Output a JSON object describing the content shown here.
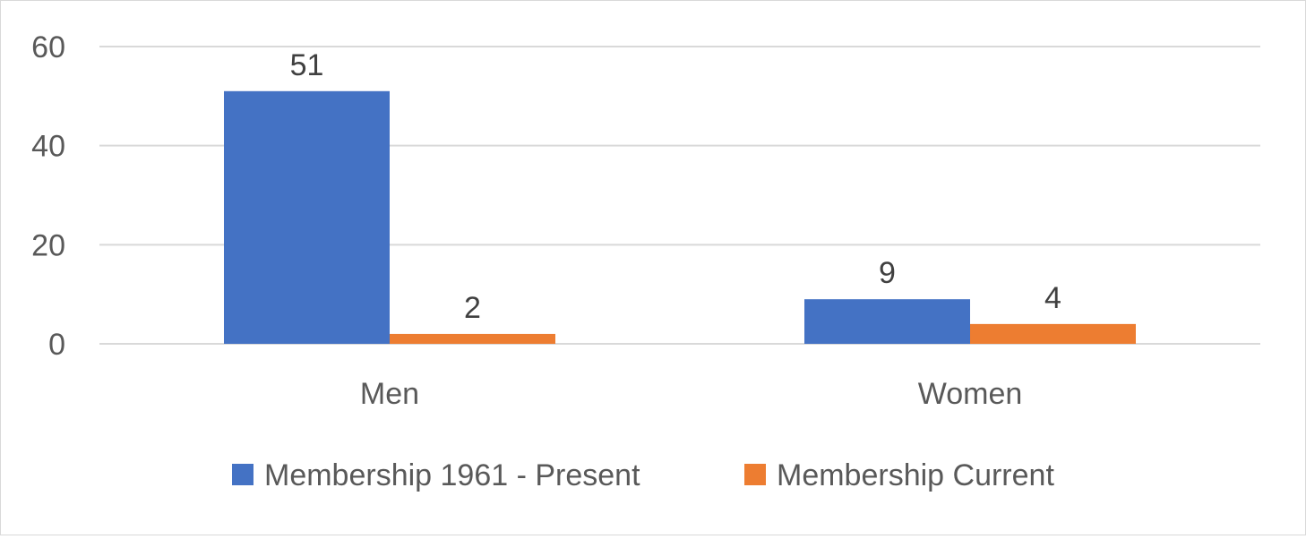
{
  "chart_data": {
    "type": "bar",
    "title": "",
    "xlabel": "",
    "ylabel": "",
    "categories": [
      "Men",
      "Women"
    ],
    "series": [
      {
        "name": "Membership 1961 - Present",
        "values": [
          51,
          9
        ],
        "color": "#4472C4"
      },
      {
        "name": "Membership Current",
        "values": [
          2,
          4
        ],
        "color": "#ED7D31"
      }
    ],
    "ylim": [
      0,
      60
    ],
    "yticks": [
      0,
      20,
      40,
      60
    ],
    "grid": true,
    "legend_position": "bottom",
    "data_labels": true,
    "gridline_color": "#d9d9d9"
  }
}
